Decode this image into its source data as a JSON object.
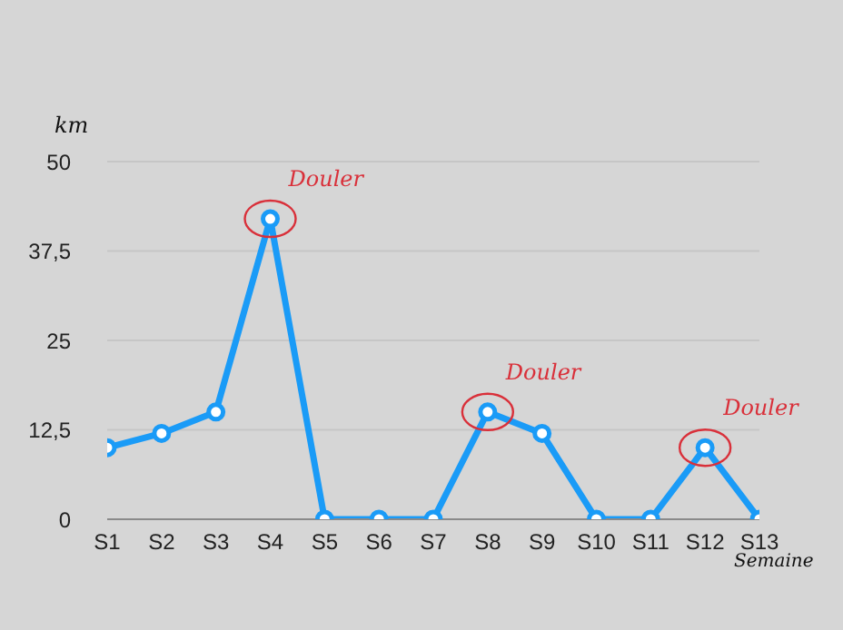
{
  "chart_data": {
    "type": "line",
    "xlabel": "Semaine",
    "ylabel": "km",
    "categories": [
      "S1",
      "S2",
      "S3",
      "S4",
      "S5",
      "S6",
      "S7",
      "S8",
      "S9",
      "S10",
      "S11",
      "S12",
      "S13"
    ],
    "series": [
      {
        "color": "#1a9bf7",
        "values": [
          10,
          12,
          15,
          42,
          0,
          0,
          0,
          15,
          12,
          0,
          0,
          10,
          0
        ]
      }
    ],
    "ylim": [
      0,
      50
    ],
    "yticks": [
      0,
      {
        "value": 12.5,
        "label": "12,5"
      },
      25,
      {
        "value": 37.5,
        "label": "37,5"
      },
      50
    ],
    "grid": "y",
    "marker": "circle",
    "line_style": "solid",
    "legend": false,
    "annotations": [
      {
        "text": "Douler",
        "x": "S4",
        "y": 42
      },
      {
        "text": "Douler",
        "x": "S8",
        "y": 15
      },
      {
        "text": "Douler",
        "x": "S12",
        "y": 10
      }
    ]
  }
}
